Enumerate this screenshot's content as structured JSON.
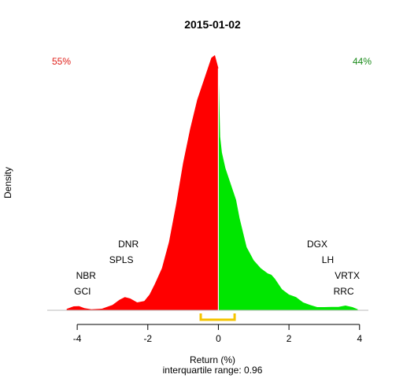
{
  "chart_data": {
    "type": "area",
    "title": "2015-01-02",
    "xlabel": "Return (%)",
    "ylabel": "Density",
    "subtitle": "interquartile range: 0.96",
    "xlim": [
      -4.85,
      4.25
    ],
    "ylim": [
      0,
      1.0
    ],
    "x_ticks": [
      -4,
      -2,
      0,
      2,
      4
    ],
    "x_tick_labels": [
      "-4",
      "-2",
      "0",
      "2",
      "4"
    ],
    "split_at": 0,
    "negative_share": "55%",
    "positive_share": "44%",
    "negative_color": "#ff0000",
    "positive_color": "#00e600",
    "negative_share_color": "#e0201a",
    "positive_share_color": "#1a8a1a",
    "iqr_color": "#f5c400",
    "iqr": [
      -0.5,
      0.46
    ],
    "density": {
      "x": [
        -4.3,
        -4.1,
        -3.95,
        -3.8,
        -3.6,
        -3.3,
        -3.0,
        -2.8,
        -2.65,
        -2.5,
        -2.3,
        -2.1,
        -1.95,
        -1.8,
        -1.6,
        -1.4,
        -1.2,
        -1.0,
        -0.8,
        -0.6,
        -0.4,
        -0.3,
        -0.2,
        -0.1,
        0.0,
        0.05,
        0.1,
        0.2,
        0.3,
        0.4,
        0.5,
        0.6,
        0.8,
        1.0,
        1.2,
        1.4,
        1.5,
        1.6,
        1.8,
        2.0,
        2.2,
        2.4,
        2.6,
        2.8,
        3.0,
        3.2,
        3.4,
        3.6,
        3.8,
        3.95
      ],
      "y": [
        0.005,
        0.015,
        0.016,
        0.008,
        0.004,
        0.006,
        0.02,
        0.04,
        0.05,
        0.045,
        0.03,
        0.035,
        0.06,
        0.1,
        0.16,
        0.26,
        0.4,
        0.56,
        0.69,
        0.8,
        0.88,
        0.92,
        0.96,
        0.97,
        0.92,
        0.66,
        0.6,
        0.54,
        0.5,
        0.46,
        0.42,
        0.35,
        0.24,
        0.19,
        0.16,
        0.14,
        0.135,
        0.12,
        0.08,
        0.06,
        0.05,
        0.03,
        0.02,
        0.012,
        0.012,
        0.013,
        0.013,
        0.018,
        0.012,
        0.004
      ]
    },
    "tickers": [
      {
        "name": "DNR",
        "x": -2.55,
        "y": 0.24
      },
      {
        "name": "SPLS",
        "x": -2.75,
        "y": 0.18
      },
      {
        "name": "NBR",
        "x": -3.75,
        "y": 0.12
      },
      {
        "name": "GCI",
        "x": -3.85,
        "y": 0.06
      },
      {
        "name": "DGX",
        "x": 2.8,
        "y": 0.24
      },
      {
        "name": "LH",
        "x": 3.1,
        "y": 0.18
      },
      {
        "name": "VRTX",
        "x": 3.65,
        "y": 0.12
      },
      {
        "name": "RRC",
        "x": 3.55,
        "y": 0.06
      }
    ]
  }
}
